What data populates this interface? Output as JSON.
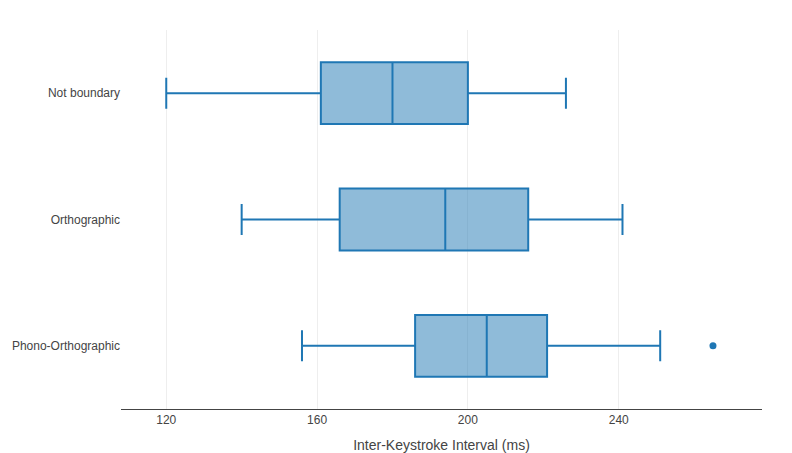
{
  "chart_data": {
    "type": "box",
    "orientation": "horizontal",
    "categories": [
      "Phono-Orthographic",
      "Orthographic",
      "Not boundary"
    ],
    "boxes": [
      {
        "q1": 186,
        "median": 205,
        "q3": 221,
        "whisker_low": 156,
        "whisker_high": 251,
        "outliers": [
          265
        ]
      },
      {
        "q1": 166,
        "median": 194,
        "q3": 216,
        "whisker_low": 140,
        "whisker_high": 241,
        "outliers": []
      },
      {
        "q1": 161,
        "median": 180,
        "q3": 200,
        "whisker_low": 120,
        "whisker_high": 226,
        "outliers": []
      }
    ],
    "xlabel": "Inter-Keystroke Interval (ms)",
    "xlim": [
      108,
      278
    ],
    "xticks": [
      120,
      160,
      200,
      240
    ],
    "grid": "x"
  }
}
